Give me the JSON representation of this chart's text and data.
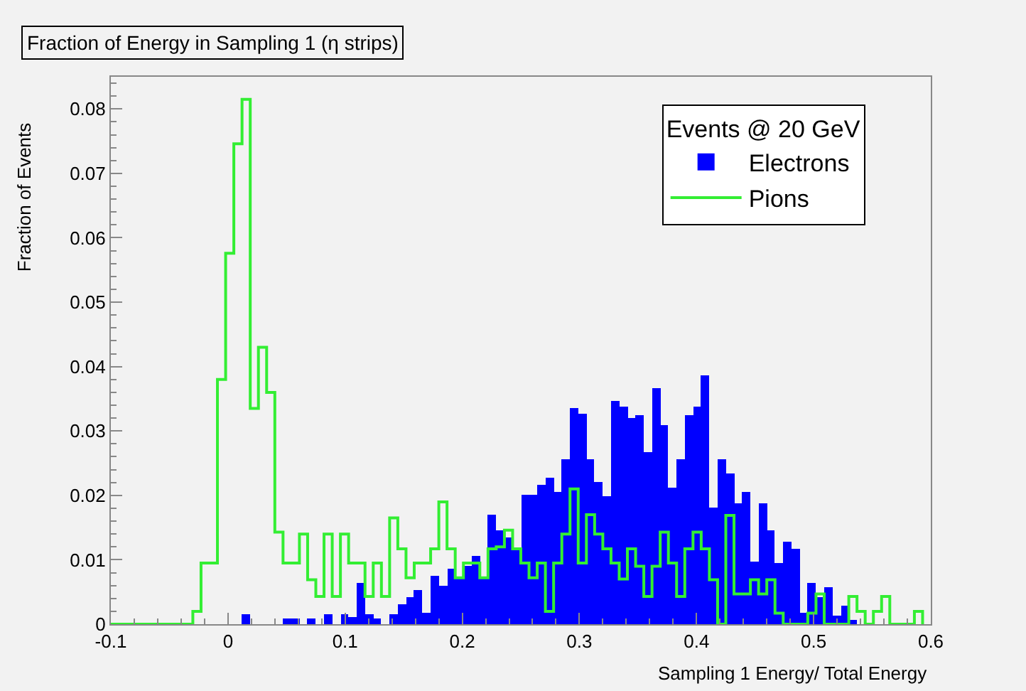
{
  "chart_data": {
    "type": "histogram",
    "title": "Fraction of Energy in Sampling 1 (η strips)",
    "xlabel": "Sampling 1 Energy/ Total Energy",
    "ylabel": "Fraction of Events",
    "legend_title": "Events @ 20 GeV",
    "legend": "top right",
    "grid": false,
    "xlim": [
      -0.1,
      0.6
    ],
    "xticks": [
      -0.1,
      0,
      0.1,
      0.2,
      0.3,
      0.4,
      0.5,
      0.6
    ],
    "ylim": [
      0,
      0.085
    ],
    "yticks": [
      0,
      0.01,
      0.02,
      0.03,
      0.04,
      0.05,
      0.06,
      0.07,
      0.08
    ],
    "bins": [
      -0.1,
      -0.093,
      -0.086,
      -0.079,
      -0.072,
      -0.065,
      -0.058,
      -0.051,
      -0.044,
      -0.037,
      -0.03,
      -0.023,
      -0.016,
      -0.009,
      -0.002,
      0.005,
      0.012,
      0.019,
      0.026,
      0.033,
      0.04,
      0.047,
      0.054,
      0.061,
      0.068,
      0.075,
      0.082,
      0.089,
      0.096,
      0.103,
      0.11,
      0.117,
      0.124,
      0.131,
      0.138,
      0.145,
      0.152,
      0.159,
      0.166,
      0.173,
      0.18,
      0.187,
      0.194,
      0.201,
      0.208,
      0.215,
      0.222,
      0.229,
      0.236,
      0.243,
      0.25,
      0.257,
      0.264,
      0.271,
      0.278,
      0.285,
      0.292,
      0.299,
      0.306,
      0.313,
      0.32,
      0.327,
      0.334,
      0.341,
      0.348,
      0.355,
      0.362,
      0.369,
      0.376,
      0.383,
      0.39,
      0.397,
      0.404,
      0.411,
      0.418,
      0.425,
      0.432,
      0.439,
      0.446,
      0.453,
      0.46,
      0.467,
      0.474,
      0.481,
      0.488,
      0.495,
      0.502,
      0.509,
      0.516,
      0.523,
      0.53,
      0.537,
      0.544,
      0.551,
      0.558,
      0.565,
      0.572,
      0.579,
      0.586,
      0.593,
      0.6
    ],
    "series": [
      {
        "name": "Electrons",
        "color": "#0000ff",
        "values": [
          0,
          0,
          0,
          0,
          0,
          0,
          0,
          0,
          0,
          0,
          0,
          0,
          0,
          0,
          0,
          0,
          0.0015,
          0,
          0,
          0,
          0,
          0.0008,
          0.0008,
          0,
          0.0008,
          0,
          0.0015,
          0,
          0.0015,
          0.001,
          0.0065,
          0.0015,
          0.0008,
          0,
          0.0015,
          0.003,
          0.0043,
          0.0054,
          0.0017,
          0.0076,
          0.006,
          0.0087,
          0.0072,
          0.009,
          0.0106,
          0.0072,
          0.0169,
          0.0146,
          0.0135,
          0.0117,
          0.02,
          0.02,
          0.0217,
          0.0228,
          0.0205,
          0.0257,
          0.0335,
          0.0327,
          0.0257,
          0.022,
          0.0198,
          0.0346,
          0.0338,
          0.032,
          0.0324,
          0.0268,
          0.0366,
          0.031,
          0.0213,
          0.0257,
          0.0324,
          0.0338,
          0.0387,
          0.018,
          0.0257,
          0.0235,
          0.0187,
          0.0205,
          0.0098,
          0.0187,
          0.0146,
          0.0095,
          0.0128,
          0.0117,
          0.0017,
          0.0065,
          0.0043,
          0.0058,
          0.0013,
          0.0028,
          0.0006,
          0,
          0,
          0,
          0,
          0,
          0,
          0,
          0,
          0
        ]
      },
      {
        "name": "Pions",
        "type": "step",
        "color": "#33ee33",
        "x": [
          -0.1,
          -0.093,
          -0.086,
          -0.079,
          -0.072,
          -0.065,
          -0.058,
          -0.051,
          -0.044,
          -0.037,
          -0.03,
          -0.023,
          -0.016,
          -0.009,
          -0.002,
          0.005,
          0.012,
          0.019,
          0.026,
          0.033,
          0.04,
          0.047,
          0.054,
          0.061,
          0.068,
          0.075,
          0.082,
          0.089,
          0.096,
          0.103,
          0.11,
          0.117,
          0.124,
          0.131,
          0.138,
          0.145,
          0.152,
          0.159,
          0.166,
          0.173,
          0.18,
          0.187,
          0.194,
          0.201,
          0.208,
          0.215,
          0.222,
          0.229,
          0.236,
          0.243,
          0.25,
          0.257,
          0.264,
          0.271,
          0.278,
          0.285,
          0.292,
          0.299,
          0.306,
          0.313,
          0.32,
          0.327,
          0.334,
          0.341,
          0.348,
          0.355,
          0.362,
          0.369,
          0.376,
          0.383,
          0.39,
          0.397,
          0.404,
          0.411,
          0.418,
          0.425,
          0.432,
          0.439,
          0.446,
          0.453,
          0.46,
          0.467,
          0.474,
          0.481,
          0.488,
          0.495,
          0.502,
          0.509,
          0.516,
          0.523,
          0.53,
          0.537,
          0.544,
          0.551,
          0.558,
          0.565,
          0.572,
          0.579,
          0.586,
          0.593
        ],
        "values": [
          0,
          0,
          0,
          0,
          0,
          0,
          0,
          0,
          0,
          0,
          0.002,
          0.0095,
          0.0095,
          0.038,
          0.0576,
          0.0746,
          0.0815,
          0.0335,
          0.043,
          0.036,
          0.0143,
          0.0095,
          0.0095,
          0.014,
          0.0069,
          0.0043,
          0.014,
          0.0043,
          0.014,
          0.0095,
          0.0095,
          0.0043,
          0.0095,
          0.0043,
          0.0165,
          0.0117,
          0.0072,
          0.0095,
          0.0095,
          0.0117,
          0.019,
          0.0117,
          0.0072,
          0.0095,
          0.0095,
          0.0072,
          0.0117,
          0.012,
          0.0146,
          0.0117,
          0.0095,
          0.0072,
          0.0095,
          0.002,
          0.0095,
          0.014,
          0.021,
          0.0095,
          0.017,
          0.014,
          0.0117,
          0.0095,
          0.007,
          0.0117,
          0.009,
          0.0043,
          0.009,
          0.0143,
          0.0095,
          0.0043,
          0.0117,
          0.0143,
          0.0117,
          0.0069,
          0,
          0.0169,
          0.0047,
          0.0047,
          0.0069,
          0.0047,
          0.0069,
          0.0017,
          0,
          0,
          0,
          0.0017,
          0.0047,
          0,
          0,
          0,
          0.0043,
          0.002,
          0,
          0.002,
          0.0043,
          0,
          0,
          0,
          0.002,
          0
        ]
      }
    ]
  }
}
